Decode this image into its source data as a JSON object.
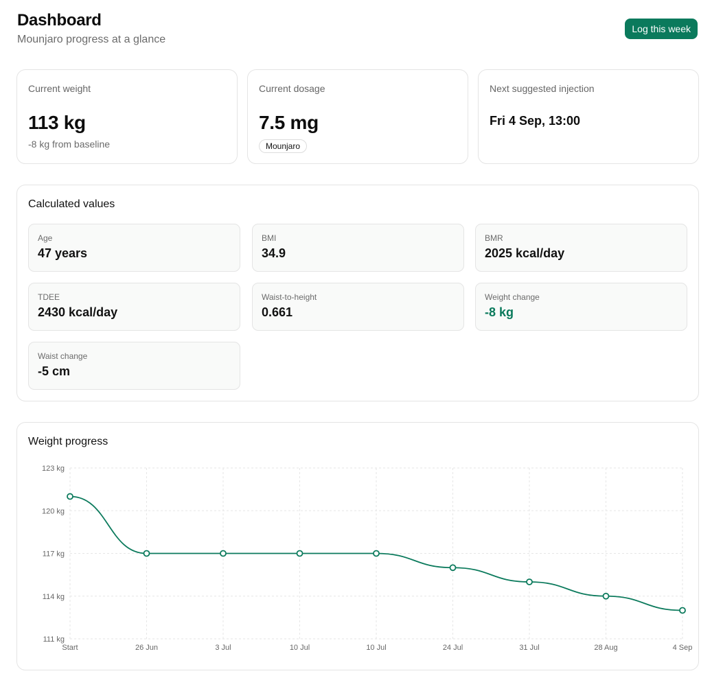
{
  "header": {
    "title": "Dashboard",
    "subtitle": "Mounjaro progress at a glance",
    "log_button": "Log this week"
  },
  "stats": {
    "weight": {
      "label": "Current weight",
      "value": "113 kg",
      "sub": "-8 kg from baseline"
    },
    "dosage": {
      "label": "Current dosage",
      "value": "7.5 mg",
      "badge": "Mounjaro"
    },
    "injection": {
      "label": "Next suggested injection",
      "value": "Fri 4 Sep, 13:00"
    }
  },
  "calculated": {
    "title": "Calculated values",
    "tiles": [
      {
        "label": "Age",
        "value": "47 years"
      },
      {
        "label": "BMI",
        "value": "34.9"
      },
      {
        "label": "BMR",
        "value": "2025 kcal/day"
      },
      {
        "label": "TDEE",
        "value": "2430 kcal/day"
      },
      {
        "label": "Waist-to-height",
        "value": "0.661"
      },
      {
        "label": "Weight change",
        "value": "-8 kg"
      },
      {
        "label": "Waist change",
        "value": "-5 cm"
      }
    ]
  },
  "colors": {
    "accent": "#0b7a5c",
    "muted": "#6b6b6b",
    "border": "#e4e4e4"
  },
  "chart_data": {
    "type": "line",
    "title": "Weight progress",
    "categories": [
      "Start",
      "26 Jun",
      "3 Jul",
      "10 Jul",
      "10 Jul",
      "24 Jul",
      "31 Jul",
      "28 Aug",
      "4 Sep"
    ],
    "series": [
      {
        "values": [
          121,
          117,
          117,
          117,
          117,
          116,
          115,
          114,
          113
        ]
      }
    ],
    "ylim": [
      111,
      123
    ],
    "yticks": [
      111,
      114,
      117,
      120,
      123
    ],
    "ytick_labels": [
      "111 kg",
      "114 kg",
      "117 kg",
      "120 kg",
      "123 kg"
    ],
    "grid": true,
    "line_color": "#0b7a5c"
  }
}
